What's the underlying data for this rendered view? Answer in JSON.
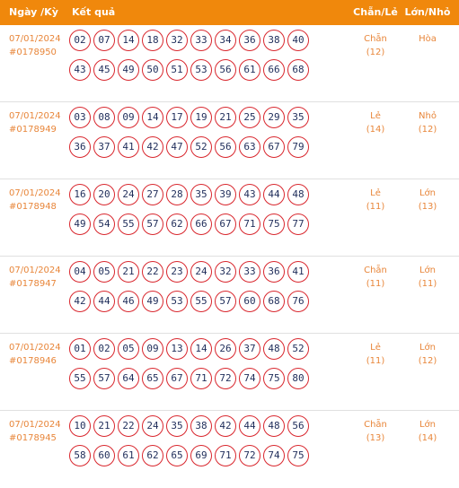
{
  "header": {
    "date_period": "Ngày /Kỳ",
    "result": "Kết quả",
    "even_odd": "Chẵn/Lẻ",
    "big_small": "Lớn/Nhỏ"
  },
  "draws": [
    {
      "date": "07/01/2024",
      "period": "#0178950",
      "row1": [
        "02",
        "07",
        "14",
        "18",
        "32",
        "33",
        "34",
        "36",
        "38",
        "40"
      ],
      "row2": [
        "43",
        "45",
        "49",
        "50",
        "51",
        "53",
        "56",
        "61",
        "66",
        "68"
      ],
      "even_odd": "Chẵn",
      "even_odd_count": "(12)",
      "big_small": "Hòa",
      "big_small_count": ""
    },
    {
      "date": "07/01/2024",
      "period": "#0178949",
      "row1": [
        "03",
        "08",
        "09",
        "14",
        "17",
        "19",
        "21",
        "25",
        "29",
        "35"
      ],
      "row2": [
        "36",
        "37",
        "41",
        "42",
        "47",
        "52",
        "56",
        "63",
        "67",
        "79"
      ],
      "even_odd": "Lẻ",
      "even_odd_count": "(14)",
      "big_small": "Nhỏ",
      "big_small_count": "(12)"
    },
    {
      "date": "07/01/2024",
      "period": "#0178948",
      "row1": [
        "16",
        "20",
        "24",
        "27",
        "28",
        "35",
        "39",
        "43",
        "44",
        "48"
      ],
      "row2": [
        "49",
        "54",
        "55",
        "57",
        "62",
        "66",
        "67",
        "71",
        "75",
        "77"
      ],
      "even_odd": "Lẻ",
      "even_odd_count": "(11)",
      "big_small": "Lớn",
      "big_small_count": "(13)"
    },
    {
      "date": "07/01/2024",
      "period": "#0178947",
      "row1": [
        "04",
        "05",
        "21",
        "22",
        "23",
        "24",
        "32",
        "33",
        "36",
        "41"
      ],
      "row2": [
        "42",
        "44",
        "46",
        "49",
        "53",
        "55",
        "57",
        "60",
        "68",
        "76"
      ],
      "even_odd": "Chẵn",
      "even_odd_count": "(11)",
      "big_small": "Lớn",
      "big_small_count": "(11)"
    },
    {
      "date": "07/01/2024",
      "period": "#0178946",
      "row1": [
        "01",
        "02",
        "05",
        "09",
        "13",
        "14",
        "26",
        "37",
        "48",
        "52"
      ],
      "row2": [
        "55",
        "57",
        "64",
        "65",
        "67",
        "71",
        "72",
        "74",
        "75",
        "80"
      ],
      "even_odd": "Lẻ",
      "even_odd_count": "(11)",
      "big_small": "Lớn",
      "big_small_count": "(12)"
    },
    {
      "date": "07/01/2024",
      "period": "#0178945",
      "row1": [
        "10",
        "21",
        "22",
        "24",
        "35",
        "38",
        "42",
        "44",
        "48",
        "56"
      ],
      "row2": [
        "58",
        "60",
        "61",
        "62",
        "65",
        "69",
        "71",
        "72",
        "74",
        "75"
      ],
      "even_odd": "Chẵn",
      "even_odd_count": "(13)",
      "big_small": "Lớn",
      "big_small_count": "(14)"
    }
  ]
}
